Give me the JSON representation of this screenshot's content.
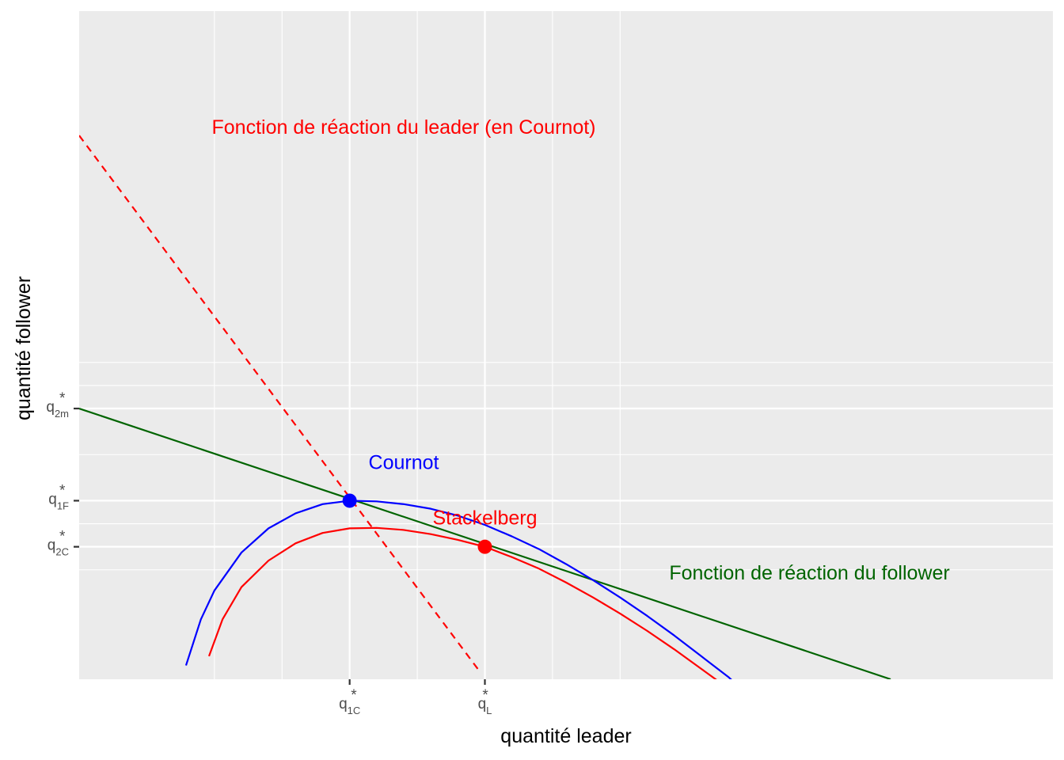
{
  "chart_data": {
    "type": "line",
    "xlabel": "quantité leader",
    "ylabel": "quantité follower",
    "xlim": [
      0,
      36
    ],
    "ylim": [
      0,
      29
    ],
    "x_ticks": [
      {
        "value": 10,
        "base": "q",
        "sub": "1C",
        "sup": "*"
      },
      {
        "value": 15,
        "base": "q",
        "sub": "L",
        "sup": "*"
      }
    ],
    "y_ticks": [
      {
        "value": 5.75,
        "base": "q",
        "sub": "2C",
        "sup": "*"
      },
      {
        "value": 7.75,
        "base": "q",
        "sub": "1F",
        "sup": "*"
      },
      {
        "value": 11.75,
        "base": "q",
        "sub": "2m",
        "sup": "*"
      }
    ],
    "minor_x_grid": [
      5,
      7.5,
      12.5,
      17.5,
      20
    ],
    "minor_y_grid": [
      4.75,
      5.75,
      6.75,
      7.75,
      9.75,
      12.75,
      13.75
    ],
    "colors": {
      "cournot": "#0000ff",
      "stackelberg": "#ff0000",
      "follower": "#006400",
      "leader": "#ff0000"
    },
    "series": [
      {
        "key": "leader-reaction",
        "style": "dashed",
        "x": [
          0,
          14.8
        ],
        "y": [
          23.6,
          0.35
        ]
      },
      {
        "key": "follower-reaction",
        "style": "solid",
        "x": [
          0,
          30
        ],
        "y": [
          11.75,
          0
        ]
      },
      {
        "key": "cournot-isoprofit",
        "style": "solid",
        "x": [
          3.95,
          4.5,
          5,
          6,
          7,
          8,
          9,
          10,
          11,
          12,
          13,
          14,
          15,
          16,
          17,
          18,
          19,
          20,
          21,
          22,
          23,
          24,
          25.3
        ],
        "y": [
          0.6,
          2.6,
          3.85,
          5.5,
          6.55,
          7.2,
          7.6,
          7.75,
          7.72,
          7.6,
          7.4,
          7.1,
          6.7,
          6.2,
          5.65,
          5.0,
          4.3,
          3.55,
          2.75,
          1.9,
          1.0,
          0.1,
          -1.3
        ]
      },
      {
        "key": "stackelberg-isoprofit",
        "style": "solid",
        "x": [
          4.8,
          5.3,
          6,
          7,
          8,
          9,
          10,
          11,
          12,
          13,
          14,
          15,
          16,
          17,
          18,
          19,
          20,
          21,
          22,
          23,
          24,
          25
        ],
        "y": [
          1.0,
          2.6,
          4.0,
          5.15,
          5.9,
          6.35,
          6.55,
          6.57,
          6.48,
          6.3,
          6.05,
          5.75,
          5.3,
          4.8,
          4.2,
          3.55,
          2.85,
          2.1,
          1.3,
          0.45,
          -0.4,
          -1.25
        ]
      }
    ],
    "points": [
      {
        "key": "cournot",
        "x": 10,
        "y": 7.75
      },
      {
        "key": "stackelberg",
        "x": 15,
        "y": 5.75
      }
    ],
    "annotations": [
      {
        "key": "leader",
        "text": "Fonction de réaction du leader (en Cournot)",
        "x": 12,
        "y": 23.9
      },
      {
        "key": "cournot",
        "text": "Cournot",
        "x": 12,
        "y": 9.35
      },
      {
        "key": "stackelberg",
        "text": "Stackelberg",
        "x": 15,
        "y": 6.95
      },
      {
        "key": "follower",
        "text": "Fonction de réaction du follower",
        "x": 27,
        "y": 4.55
      }
    ]
  }
}
